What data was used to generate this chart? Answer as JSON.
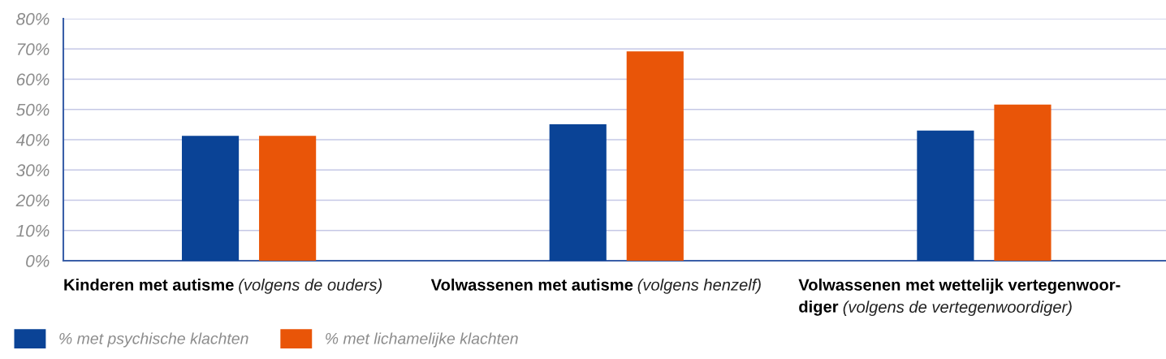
{
  "chart_data": {
    "type": "bar",
    "categories": [
      "Kinderen met autisme (volgens de ouders)",
      "Volwassenen met autisme (volgens henzelf)",
      "Volwassenen met wettelijk vertegenwoor-\ndiger (volgens de vertegenwoordiger)"
    ],
    "series": [
      {
        "name": "% met psychische klachten",
        "color": "#0a4396",
        "values": [
          41.3,
          45.1,
          43.0
        ]
      },
      {
        "name": "% met lichamelijke klachten",
        "color": "#e95508",
        "values": [
          41.3,
          69.2,
          51.6
        ]
      }
    ],
    "ylim": [
      0,
      80
    ],
    "yticks": [
      {
        "value": 0,
        "label": "0%"
      },
      {
        "value": 10,
        "label": "10%"
      },
      {
        "value": 20,
        "label": "20%"
      },
      {
        "value": 30,
        "label": "30%"
      },
      {
        "value": 40,
        "label": "40%"
      },
      {
        "value": 50,
        "label": "50%"
      },
      {
        "value": 60,
        "label": "60%"
      },
      {
        "value": 70,
        "label": "70%"
      },
      {
        "value": 80,
        "label": "80%"
      }
    ],
    "grid": "y",
    "legend": "bottom left"
  }
}
